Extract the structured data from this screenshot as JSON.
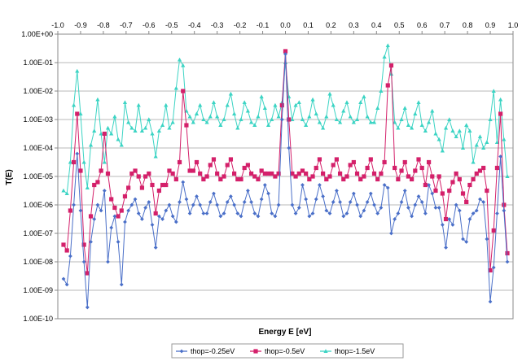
{
  "chart_data": {
    "type": "line",
    "xlabel": "Energy E [eV]",
    "ylabel": "T(E)",
    "xlim": [
      -1.0,
      1.0
    ],
    "ylim_log10": [
      -10,
      0
    ],
    "log_scale_y": true,
    "grid": "horizontal",
    "legend_placement": "bottom",
    "x_tick_labels": [
      "-1.0",
      "-0.9",
      "-0.8",
      "-0.7",
      "-0.6",
      "-0.5",
      "-0.4",
      "-0.3",
      "-0.2",
      "-0.1",
      "0.0",
      "0.1",
      "0.2",
      "0.3",
      "0.4",
      "0.5",
      "0.6",
      "0.7",
      "0.8",
      "0.9",
      "1.0"
    ],
    "y_tick_labels": [
      "1.00E-10",
      "1.00E-09",
      "1.00E-08",
      "1.00E-07",
      "1.00E-06",
      "1.00E-05",
      "1.00E-04",
      "1.00E-03",
      "1.00E-02",
      "1.00E-01",
      "1.00E+00"
    ],
    "x": [
      -0.975,
      -0.96,
      -0.945,
      -0.93,
      -0.915,
      -0.9,
      -0.885,
      -0.87,
      -0.855,
      -0.84,
      -0.825,
      -0.81,
      -0.795,
      -0.78,
      -0.765,
      -0.75,
      -0.735,
      -0.72,
      -0.705,
      -0.69,
      -0.675,
      -0.66,
      -0.645,
      -0.63,
      -0.615,
      -0.6,
      -0.585,
      -0.57,
      -0.555,
      -0.54,
      -0.525,
      -0.51,
      -0.495,
      -0.48,
      -0.465,
      -0.45,
      -0.435,
      -0.42,
      -0.405,
      -0.39,
      -0.375,
      -0.36,
      -0.345,
      -0.33,
      -0.315,
      -0.3,
      -0.285,
      -0.27,
      -0.255,
      -0.24,
      -0.225,
      -0.21,
      -0.195,
      -0.18,
      -0.165,
      -0.15,
      -0.135,
      -0.12,
      -0.105,
      -0.09,
      -0.075,
      -0.06,
      -0.045,
      -0.03,
      -0.015,
      0.0,
      0.015,
      0.03,
      0.045,
      0.06,
      0.075,
      0.09,
      0.105,
      0.12,
      0.135,
      0.15,
      0.165,
      0.18,
      0.195,
      0.21,
      0.225,
      0.24,
      0.255,
      0.27,
      0.285,
      0.3,
      0.315,
      0.33,
      0.345,
      0.36,
      0.375,
      0.39,
      0.405,
      0.42,
      0.435,
      0.45,
      0.465,
      0.48,
      0.495,
      0.51,
      0.525,
      0.54,
      0.555,
      0.57,
      0.585,
      0.6,
      0.615,
      0.63,
      0.645,
      0.66,
      0.675,
      0.69,
      0.705,
      0.72,
      0.735,
      0.75,
      0.765,
      0.78,
      0.795,
      0.81,
      0.825,
      0.84,
      0.855,
      0.87,
      0.885,
      0.9,
      0.915,
      0.93,
      0.945,
      0.96,
      0.975
    ],
    "series": [
      {
        "name": "thop=-0.25eV",
        "color": "#4a6fc8",
        "marker": "diamond",
        "log10_values": [
          -8.6,
          -8.8,
          -7.8,
          -6.0,
          -4.2,
          -6.2,
          -8.0,
          -9.6,
          -7.3,
          -6.5,
          -6.0,
          -6.2,
          -5.5,
          -8.0,
          -6.8,
          -6.4,
          -7.3,
          -8.8,
          -6.6,
          -6.2,
          -6.0,
          -5.8,
          -6.3,
          -6.5,
          -6.1,
          -5.9,
          -6.7,
          -7.5,
          -6.4,
          -6.5,
          -6.2,
          -6.0,
          -6.4,
          -6.6,
          -5.9,
          -5.2,
          -5.8,
          -6.3,
          -6.0,
          -5.7,
          -6.0,
          -6.3,
          -6.3,
          -5.9,
          -5.6,
          -6.0,
          -6.4,
          -6.3,
          -5.9,
          -5.7,
          -6.0,
          -6.3,
          -6.4,
          -5.9,
          -5.5,
          -5.9,
          -6.3,
          -6.4,
          -5.8,
          -5.3,
          -5.6,
          -6.3,
          -6.4,
          -6.0,
          -3.0,
          -0.7,
          -4.0,
          -6.0,
          -6.3,
          -6.1,
          -5.3,
          -5.8,
          -6.4,
          -6.3,
          -5.8,
          -5.3,
          -5.7,
          -6.2,
          -6.3,
          -5.9,
          -5.5,
          -5.9,
          -6.4,
          -6.3,
          -5.9,
          -5.6,
          -6.0,
          -6.4,
          -6.2,
          -5.9,
          -5.6,
          -6.0,
          -6.3,
          -6.1,
          -5.3,
          -5.4,
          -7.0,
          -6.5,
          -6.3,
          -5.9,
          -5.5,
          -6.1,
          -6.4,
          -6.0,
          -5.7,
          -5.9,
          -6.3,
          -5.3,
          -5.6,
          -6.1,
          -6.1,
          -6.7,
          -7.5,
          -6.5,
          -6.7,
          -6.0,
          -6.2,
          -7.2,
          -7.3,
          -6.5,
          -6.3,
          -6.2,
          -5.8,
          -5.9,
          -7.2,
          -9.4,
          -8.2,
          -6.3,
          -4.3,
          -6.2,
          -8.0,
          -8.9,
          -8.6
        ]
      },
      {
        "name": "thop=-0.5eV",
        "color": "#d4206a",
        "marker": "square",
        "log10_values": [
          -7.4,
          -7.6,
          -6.2,
          -4.5,
          -2.8,
          -4.8,
          -7.4,
          -8.4,
          -6.4,
          -5.3,
          -5.2,
          -4.8,
          -3.5,
          -4.9,
          -5.8,
          -6.1,
          -6.4,
          -6.2,
          -5.7,
          -5.4,
          -4.9,
          -4.8,
          -5.0,
          -5.4,
          -5.0,
          -4.9,
          -5.3,
          -6.3,
          -5.5,
          -5.3,
          -5.3,
          -4.8,
          -4.9,
          -5.1,
          -4.5,
          -2.0,
          -3.2,
          -4.8,
          -4.8,
          -4.5,
          -4.9,
          -5.1,
          -5.0,
          -4.6,
          -4.4,
          -4.9,
          -5.1,
          -5.0,
          -4.6,
          -4.4,
          -4.9,
          -5.1,
          -5.1,
          -4.7,
          -4.6,
          -4.9,
          -5.0,
          -5.1,
          -4.8,
          -4.9,
          -4.9,
          -4.9,
          -5.0,
          -4.9,
          -2.5,
          -0.6,
          -3.0,
          -4.9,
          -5.0,
          -4.9,
          -4.8,
          -4.9,
          -5.1,
          -5.0,
          -4.7,
          -4.4,
          -4.9,
          -5.1,
          -5.0,
          -4.6,
          -4.4,
          -4.9,
          -5.1,
          -5.0,
          -4.6,
          -4.5,
          -4.9,
          -5.1,
          -5.0,
          -4.7,
          -4.4,
          -4.9,
          -5.1,
          -4.9,
          -4.5,
          -1.8,
          -1.1,
          -4.7,
          -5.1,
          -4.8,
          -4.5,
          -5.0,
          -5.1,
          -4.8,
          -4.4,
          -4.7,
          -5.3,
          -4.5,
          -5.0,
          -5.5,
          -5.0,
          -5.6,
          -6.5,
          -5.5,
          -5.2,
          -4.9,
          -5.1,
          -5.6,
          -5.9,
          -5.3,
          -5.1,
          -4.9,
          -4.8,
          -4.7,
          -5.5,
          -8.3,
          -6.9,
          -4.7,
          -2.8,
          -6.0,
          -7.7,
          -7.6,
          -7.4
        ]
      },
      {
        "name": "thop=-1.5eV",
        "color": "#3cd4c4",
        "marker": "triangle",
        "log10_values": [
          -5.5,
          -5.6,
          -4.5,
          -2.5,
          -1.3,
          -2.8,
          -4.5,
          -5.4,
          -3.9,
          -3.4,
          -2.3,
          -3.5,
          -4.5,
          -3.3,
          -3.5,
          -2.9,
          -3.7,
          -3.9,
          -2.4,
          -3.1,
          -3.3,
          -3.4,
          -2.5,
          -3.4,
          -3.3,
          -3.0,
          -3.5,
          -4.3,
          -3.4,
          -3.2,
          -2.5,
          -3.3,
          -3.1,
          -1.9,
          -0.9,
          -1.1,
          -2.7,
          -2.9,
          -3.1,
          -2.8,
          -2.5,
          -3.0,
          -3.1,
          -2.9,
          -2.4,
          -2.9,
          -3.2,
          -3.0,
          -2.5,
          -2.1,
          -2.8,
          -3.3,
          -3.0,
          -2.4,
          -2.7,
          -3.1,
          -3.2,
          -2.9,
          -2.2,
          -2.6,
          -3.2,
          -3.0,
          -2.5,
          -2.9,
          -2.4,
          -1.0,
          -2.2,
          -3.0,
          -2.5,
          -2.4,
          -3.0,
          -3.2,
          -2.9,
          -2.3,
          -2.8,
          -3.1,
          -3.3,
          -2.9,
          -2.1,
          -2.5,
          -3.0,
          -3.1,
          -2.7,
          -2.4,
          -2.9,
          -3.1,
          -3.0,
          -2.4,
          -2.2,
          -2.9,
          -3.1,
          -3.1,
          -2.6,
          -2.0,
          -0.8,
          -0.4,
          -1.4,
          -3.1,
          -3.3,
          -3.0,
          -2.6,
          -3.2,
          -3.3,
          -2.8,
          -2.4,
          -3.2,
          -3.4,
          -3.1,
          -2.7,
          -3.5,
          -3.7,
          -4.1,
          -3.3,
          -3.0,
          -3.4,
          -3.6,
          -3.4,
          -4.0,
          -3.2,
          -3.4,
          -4.5,
          -3.9,
          -3.6,
          -4.0,
          -3.8,
          -3.0,
          -2.0,
          -3.8,
          -2.3,
          -3.7,
          -5.0,
          -5.7,
          -5.6
        ]
      }
    ]
  }
}
